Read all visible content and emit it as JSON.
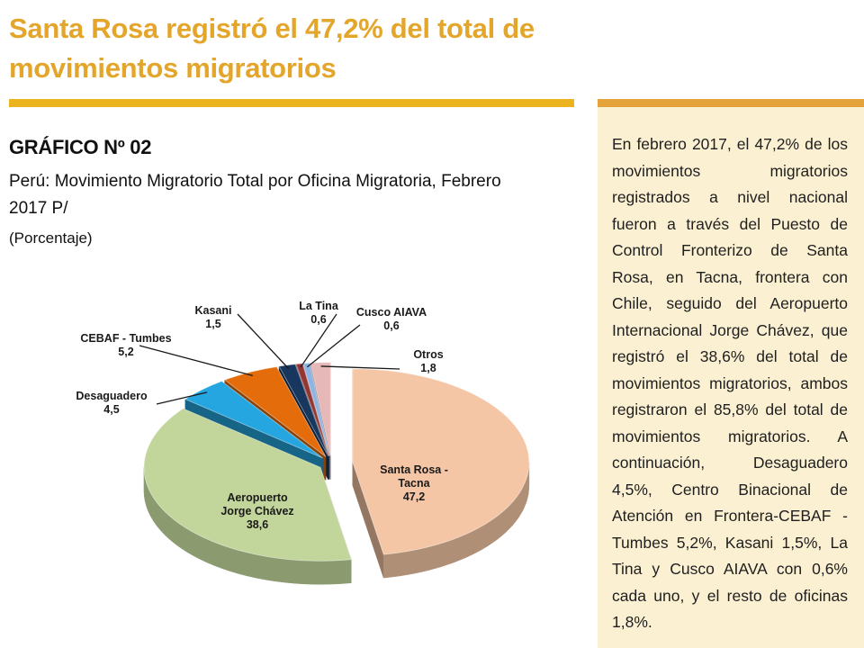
{
  "headline": "Santa Rosa registró el 47,2% del total de movimientos migratorios",
  "figure": {
    "number": "GRÁFICO Nº 02",
    "title": "Perú: Movimiento Migratorio Total  por Oficina Migratoria, Febrero 2017 P/",
    "unit": "(Porcentaje)"
  },
  "side_text": "En febrero 2017, el 47,2% de los movimientos migratorios registrados a nivel nacional fueron a través del Puesto de Control Fronterizo de Santa Rosa, en Tacna, frontera con Chile, seguido del Aeropuerto Internacional Jorge Chávez, que registró el 38,6% del total de movimientos migratorios, ambos registraron el 85,8% del total de movimientos migratorios. A continuación, Desaguadero 4,5%, Centro Binacional de Atención en Frontera-CEBAF - Tumbes 5,2%, Kasani 1,5%, La Tina y Cusco AIAVA con 0,6% cada uno, y el resto de oficinas 1,8%.",
  "colors": {
    "headline": "#e3a52a",
    "rule": "#ecb321",
    "panel": "#fbf0d2"
  },
  "chart_data": {
    "type": "pie",
    "style": "3d-exploded",
    "slices": [
      {
        "label_lines": [
          "Santa Rosa -",
          "Tacna"
        ],
        "value": 47.2,
        "value_text": "47,2",
        "color": "#f5c6a5"
      },
      {
        "label_lines": [
          "Aeropuerto",
          "Jorge Chávez"
        ],
        "value": 38.6,
        "value_text": "38,6",
        "color": "#c2d69b"
      },
      {
        "label_lines": [
          "Desaguadero"
        ],
        "value": 4.5,
        "value_text": "4,5",
        "color": "#25a6e0"
      },
      {
        "label_lines": [
          "CEBAF - Tumbes"
        ],
        "value": 5.2,
        "value_text": "5,2",
        "color": "#e46c0a"
      },
      {
        "label_lines": [
          "Kasani"
        ],
        "value": 1.5,
        "value_text": "1,5",
        "color": "#17375e"
      },
      {
        "label_lines": [
          "La Tina"
        ],
        "value": 0.6,
        "value_text": "0,6",
        "color": "#943634"
      },
      {
        "label_lines": [
          "Cusco AIAVA"
        ],
        "value": 0.6,
        "value_text": "0,6",
        "color": "#8eb4e3"
      },
      {
        "label_lines": [
          "Otros"
        ],
        "value": 1.8,
        "value_text": "1,8",
        "color": "#e6b9b8"
      }
    ]
  }
}
